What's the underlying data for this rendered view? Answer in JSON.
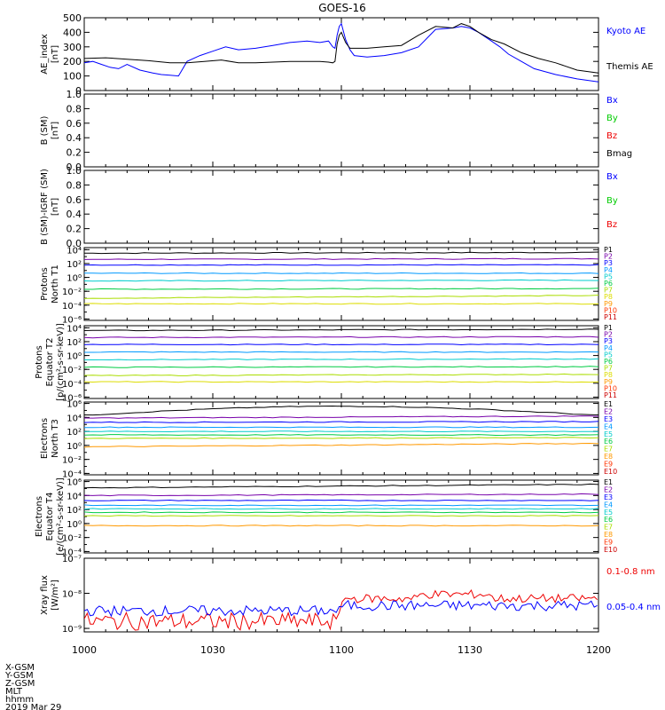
{
  "title": "GOES-16",
  "footer": {
    "rows": [
      "X-GSM",
      "Y-GSM",
      "Z-GSM",
      "MLT",
      "hhmm"
    ],
    "date": "2019 Mar 29"
  },
  "chart_data": [
    {
      "type": "line",
      "ylabel": [
        "AE_index",
        "[nT]"
      ],
      "ylim": [
        0,
        500
      ],
      "yticks": [
        "0",
        "100",
        "200",
        "300",
        "400",
        "500"
      ],
      "legend": [
        {
          "label": "Kyoto AE",
          "color": "#0000ff"
        },
        {
          "label": "Themis AE",
          "color": "#000000"
        }
      ],
      "series": [
        {
          "name": "Kyoto AE",
          "color": "#0000ff",
          "x": [
            0,
            2,
            4,
            6,
            8,
            10,
            13,
            16,
            18,
            20,
            22,
            24,
            27,
            30,
            33,
            36,
            40,
            44,
            48,
            52,
            55,
            57,
            58,
            58.5,
            59,
            59.5,
            60,
            61,
            62,
            63,
            66,
            70,
            72,
            74,
            78,
            82,
            86,
            88,
            90,
            92,
            95,
            97,
            99,
            102,
            105,
            110,
            115,
            120
          ],
          "y": [
            190,
            200,
            180,
            160,
            150,
            180,
            140,
            120,
            110,
            105,
            100,
            200,
            240,
            270,
            300,
            280,
            290,
            310,
            330,
            340,
            330,
            340,
            300,
            290,
            380,
            440,
            460,
            350,
            280,
            240,
            230,
            240,
            250,
            260,
            300,
            420,
            430,
            440,
            430,
            400,
            340,
            300,
            250,
            200,
            150,
            110,
            80,
            60
          ]
        },
        {
          "name": "Themis AE",
          "color": "#000000",
          "x": [
            0,
            5,
            10,
            15,
            20,
            24,
            28,
            32,
            36,
            40,
            44,
            48,
            52,
            55,
            57,
            58,
            58.5,
            59,
            59.5,
            60,
            61,
            62,
            66,
            70,
            74,
            78,
            82,
            86,
            88,
            90,
            92,
            95,
            98,
            102,
            106,
            110,
            115,
            120
          ],
          "y": [
            220,
            225,
            215,
            205,
            190,
            190,
            200,
            210,
            190,
            190,
            195,
            200,
            200,
            200,
            195,
            190,
            200,
            320,
            380,
            400,
            330,
            290,
            290,
            300,
            310,
            380,
            440,
            430,
            460,
            440,
            400,
            350,
            320,
            260,
            220,
            190,
            140,
            120
          ]
        }
      ]
    },
    {
      "type": "line",
      "ylabel": [
        "B (SM)",
        "[nT]"
      ],
      "ylim": [
        0,
        1
      ],
      "yticks": [
        "0.0",
        "0.2",
        "0.4",
        "0.6",
        "0.8",
        "1.0"
      ],
      "legend": [
        {
          "label": "Bx",
          "color": "#0000ff"
        },
        {
          "label": "By",
          "color": "#00cc00"
        },
        {
          "label": "Bz",
          "color": "#ee0000"
        },
        {
          "label": "Bmag",
          "color": "#000000"
        }
      ],
      "series": []
    },
    {
      "type": "line",
      "ylabel": [
        "B (SM)-IGRF (SM)",
        "[nT]"
      ],
      "ylim": [
        0,
        1
      ],
      "yticks": [
        "0.0",
        "0.2",
        "0.4",
        "0.6",
        "0.8",
        "1.0"
      ],
      "legend": [
        {
          "label": "Bx",
          "color": "#0000ff"
        },
        {
          "label": "By",
          "color": "#00cc00"
        },
        {
          "label": "Bz",
          "color": "#ee0000"
        }
      ],
      "series": []
    },
    {
      "type": "line",
      "log": true,
      "ylabel": [
        "Protons",
        "North T1"
      ],
      "ylim_exp": [
        -6.2,
        4.3
      ],
      "yticks": [
        {
          "e": -6,
          "label": "10⁻⁶"
        },
        {
          "e": -4,
          "label": "10⁻⁴"
        },
        {
          "e": -2,
          "label": "10⁻²"
        },
        {
          "e": 0,
          "label": "10⁰"
        },
        {
          "e": 2,
          "label": "10²"
        },
        {
          "e": 4,
          "label": "10⁴"
        }
      ],
      "legend": [
        {
          "label": "P1",
          "color": "#000000"
        },
        {
          "label": "P2",
          "color": "#7700aa"
        },
        {
          "label": "P3",
          "color": "#0000ff"
        },
        {
          "label": "P4",
          "color": "#0099ff"
        },
        {
          "label": "P5",
          "color": "#00cccc"
        },
        {
          "label": "P6",
          "color": "#00cc44"
        },
        {
          "label": "P7",
          "color": "#aadd00"
        },
        {
          "label": "P8",
          "color": "#dddd00"
        },
        {
          "label": "P9",
          "color": "#ff9900"
        },
        {
          "label": "P10",
          "color": "#ff3300"
        },
        {
          "label": "P11",
          "color": "#cc0000"
        }
      ],
      "series": [
        {
          "name": "P1",
          "color": "#000000",
          "log10": [
            3.5,
            3.6
          ]
        },
        {
          "name": "P2",
          "color": "#7700aa",
          "log10": [
            2.6,
            2.7
          ]
        },
        {
          "name": "P3",
          "color": "#0000ff",
          "log10": [
            1.8,
            1.8
          ]
        },
        {
          "name": "P4",
          "color": "#0099ff",
          "log10": [
            0.6,
            0.6
          ]
        },
        {
          "name": "P5",
          "color": "#00cccc",
          "log10": [
            -0.5,
            -0.4
          ]
        },
        {
          "name": "P6",
          "color": "#00cc44",
          "log10": [
            -1.7,
            -1.6
          ]
        },
        {
          "name": "P7",
          "color": "#aadd00",
          "log10": [
            -3.0,
            -2.6
          ]
        },
        {
          "name": "P8",
          "color": "#dddd00",
          "log10": [
            -3.8,
            -3.8
          ]
        }
      ]
    },
    {
      "type": "line",
      "log": true,
      "ylabel": [
        "Protons",
        "Equator T2",
        "[p/(cm²-s-sr-keV)]"
      ],
      "ylim_exp": [
        -6.2,
        4.3
      ],
      "yticks": [
        {
          "e": -6,
          "label": "10⁻⁶"
        },
        {
          "e": -4,
          "label": "10⁻⁴"
        },
        {
          "e": -2,
          "label": "10⁻²"
        },
        {
          "e": 0,
          "label": "10⁰"
        },
        {
          "e": 2,
          "label": "10²"
        },
        {
          "e": 4,
          "label": "10⁴"
        }
      ],
      "legend": [
        {
          "label": "P1",
          "color": "#000000"
        },
        {
          "label": "P2",
          "color": "#7700aa"
        },
        {
          "label": "P3",
          "color": "#0000ff"
        },
        {
          "label": "P4",
          "color": "#0099ff"
        },
        {
          "label": "P5",
          "color": "#00cccc"
        },
        {
          "label": "P6",
          "color": "#00cc44"
        },
        {
          "label": "P7",
          "color": "#aadd00"
        },
        {
          "label": "P8",
          "color": "#dddd00"
        },
        {
          "label": "P9",
          "color": "#ff9900"
        },
        {
          "label": "P10",
          "color": "#ff3300"
        },
        {
          "label": "P11",
          "color": "#cc0000"
        }
      ],
      "series": [
        {
          "name": "P1",
          "color": "#000000",
          "log10": [
            3.6,
            3.8
          ]
        },
        {
          "name": "P2",
          "color": "#7700aa",
          "log10": [
            2.6,
            2.7
          ]
        },
        {
          "name": "P3",
          "color": "#0000ff",
          "log10": [
            1.6,
            1.6
          ]
        },
        {
          "name": "P4",
          "color": "#0099ff",
          "log10": [
            0.5,
            0.5
          ]
        },
        {
          "name": "P5",
          "color": "#00cccc",
          "log10": [
            -0.6,
            -0.5
          ]
        },
        {
          "name": "P6",
          "color": "#00cc44",
          "log10": [
            -1.7,
            -1.6
          ]
        },
        {
          "name": "P7",
          "color": "#aadd00",
          "log10": [
            -2.9,
            -2.7
          ]
        },
        {
          "name": "P8",
          "color": "#dddd00",
          "log10": [
            -3.8,
            -3.8
          ]
        }
      ]
    },
    {
      "type": "line",
      "log": true,
      "ylabel": [
        "Electrons",
        "North T3"
      ],
      "ylim_exp": [
        -4.2,
        6.2
      ],
      "yticks": [
        {
          "e": -4,
          "label": "10⁻⁴"
        },
        {
          "e": -2,
          "label": "10⁻²"
        },
        {
          "e": 0,
          "label": "10⁰"
        },
        {
          "e": 2,
          "label": "10²"
        },
        {
          "e": 4,
          "label": "10⁴"
        },
        {
          "e": 6,
          "label": "10⁶"
        }
      ],
      "legend": [
        {
          "label": "E1",
          "color": "#000000"
        },
        {
          "label": "E2",
          "color": "#7700aa"
        },
        {
          "label": "E3",
          "color": "#0000ff"
        },
        {
          "label": "E4",
          "color": "#0099ff"
        },
        {
          "label": "E5",
          "color": "#00cccc"
        },
        {
          "label": "E6",
          "color": "#00cc44"
        },
        {
          "label": "E7",
          "color": "#aadd00"
        },
        {
          "label": "E8",
          "color": "#ff9900"
        },
        {
          "label": "E9",
          "color": "#ff3300"
        },
        {
          "label": "E10",
          "color": "#cc0000"
        }
      ],
      "series": [
        {
          "name": "E1",
          "color": "#000000",
          "log10": [
            4.3,
            5.6
          ]
        },
        {
          "name": "E2",
          "color": "#7700aa",
          "log10": [
            3.9,
            4.2
          ]
        },
        {
          "name": "E3",
          "color": "#0000ff",
          "log10": [
            3.3,
            3.4
          ]
        },
        {
          "name": "E4",
          "color": "#0099ff",
          "log10": [
            2.6,
            2.6
          ]
        },
        {
          "name": "E5",
          "color": "#00cccc",
          "log10": [
            2.0,
            2.0
          ]
        },
        {
          "name": "E6",
          "color": "#00cc44",
          "log10": [
            1.5,
            1.5
          ]
        },
        {
          "name": "E7",
          "color": "#aadd00",
          "log10": [
            1.0,
            1.1
          ]
        },
        {
          "name": "E8",
          "color": "#ff9900",
          "log10": [
            -0.2,
            0.3
          ]
        }
      ]
    },
    {
      "type": "line",
      "log": true,
      "ylabel": [
        "Electrons",
        "Equator T4",
        "[e/(cm²-s-sr-keV)]"
      ],
      "ylim_exp": [
        -4.2,
        6.2
      ],
      "yticks": [
        {
          "e": -4,
          "label": "10⁻⁴"
        },
        {
          "e": -2,
          "label": "10⁻²"
        },
        {
          "e": 0,
          "label": "10⁰"
        },
        {
          "e": 2,
          "label": "10²"
        },
        {
          "e": 4,
          "label": "10⁴"
        },
        {
          "e": 6,
          "label": "10⁶"
        }
      ],
      "legend": [
        {
          "label": "E1",
          "color": "#000000"
        },
        {
          "label": "E2",
          "color": "#7700aa"
        },
        {
          "label": "E3",
          "color": "#0000ff"
        },
        {
          "label": "E4",
          "color": "#0099ff"
        },
        {
          "label": "E5",
          "color": "#00cccc"
        },
        {
          "label": "E6",
          "color": "#00cc44"
        },
        {
          "label": "E7",
          "color": "#aadd00"
        },
        {
          "label": "E8",
          "color": "#ff9900"
        },
        {
          "label": "E9",
          "color": "#ff3300"
        },
        {
          "label": "E10",
          "color": "#cc0000"
        }
      ],
      "series": [
        {
          "name": "E1",
          "color": "#000000",
          "log10": [
            5.1,
            5.6
          ]
        },
        {
          "name": "E2",
          "color": "#7700aa",
          "log10": [
            4.0,
            4.2
          ]
        },
        {
          "name": "E3",
          "color": "#0000ff",
          "log10": [
            3.3,
            3.3
          ]
        },
        {
          "name": "E4",
          "color": "#0099ff",
          "log10": [
            2.6,
            2.6
          ]
        },
        {
          "name": "E5",
          "color": "#00cccc",
          "log10": [
            2.1,
            2.1
          ]
        },
        {
          "name": "E6",
          "color": "#00cc44",
          "log10": [
            1.6,
            1.6
          ]
        },
        {
          "name": "E7",
          "color": "#aadd00",
          "log10": [
            1.1,
            1.1
          ]
        },
        {
          "name": "E8",
          "color": "#ff9900",
          "log10": [
            -0.3,
            -0.3
          ]
        }
      ]
    },
    {
      "type": "line",
      "log": true,
      "ylabel": [
        "Xray flux",
        "[W/m²]"
      ],
      "ylim_exp": [
        -9.1,
        -7
      ],
      "yticks": [
        {
          "e": -9,
          "label": "10⁻⁹"
        },
        {
          "e": -8,
          "label": "10⁻⁸"
        },
        {
          "e": -7,
          "label": "10⁻⁷"
        }
      ],
      "legend": [
        {
          "label": "0.1-0.8 nm",
          "color": "#ee0000"
        },
        {
          "label": "0.05-0.4 nm",
          "color": "#0000ff"
        }
      ],
      "series": [
        {
          "name": "0.1-0.8 nm",
          "color": "#ee0000"
        },
        {
          "name": "0.05-0.4 nm",
          "color": "#0000ff"
        }
      ]
    }
  ],
  "xaxis": {
    "range_minutes": [
      0,
      120
    ],
    "ticks": [
      {
        "minute": 0,
        "label": "1000"
      },
      {
        "minute": 30,
        "label": "1030"
      },
      {
        "minute": 60,
        "label": "1100"
      },
      {
        "minute": 90,
        "label": "1130"
      },
      {
        "minute": 120,
        "label": "1200"
      }
    ]
  }
}
